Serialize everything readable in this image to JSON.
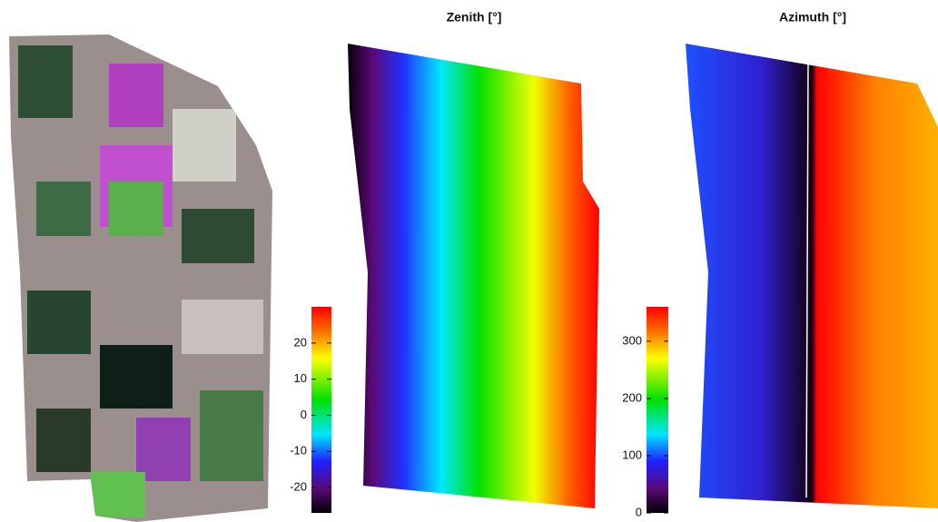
{
  "zenith": {
    "title": "Zenith [°]",
    "colorbar": {
      "lim": [
        -27,
        30
      ],
      "ticks": [
        -20,
        -10,
        0,
        10,
        20
      ]
    }
  },
  "azimuth": {
    "title": "Azimuth [°]",
    "colorbar": {
      "lim": [
        0,
        360
      ],
      "ticks": [
        0,
        100,
        200,
        300
      ]
    }
  }
}
